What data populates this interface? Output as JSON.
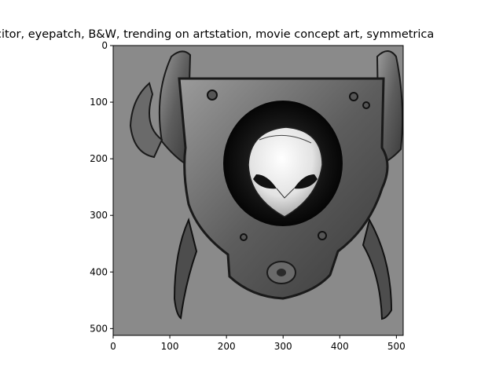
{
  "figure": {
    "title": "citor,  eyepatch, B&W, trending on artstation, movie concept art, symmetrica",
    "image_description": "",
    "x_ticks": [
      "0",
      "100",
      "200",
      "300",
      "400",
      "500"
    ],
    "y_ticks": [
      "0",
      "100",
      "200",
      "300",
      "400",
      "500"
    ],
    "x_tick_values": [
      0,
      100,
      200,
      300,
      400,
      500
    ],
    "y_tick_values": [
      0,
      100,
      200,
      300,
      400,
      500
    ],
    "axis_range": {
      "x": [
        0,
        512
      ],
      "y": [
        0,
        512
      ]
    },
    "colors": {
      "background": "#ffffff",
      "image_bg": "#8a8a8a",
      "dark": "#1a1a1a",
      "metal": "#6f6f6f",
      "light": "#e8e8e8"
    }
  }
}
